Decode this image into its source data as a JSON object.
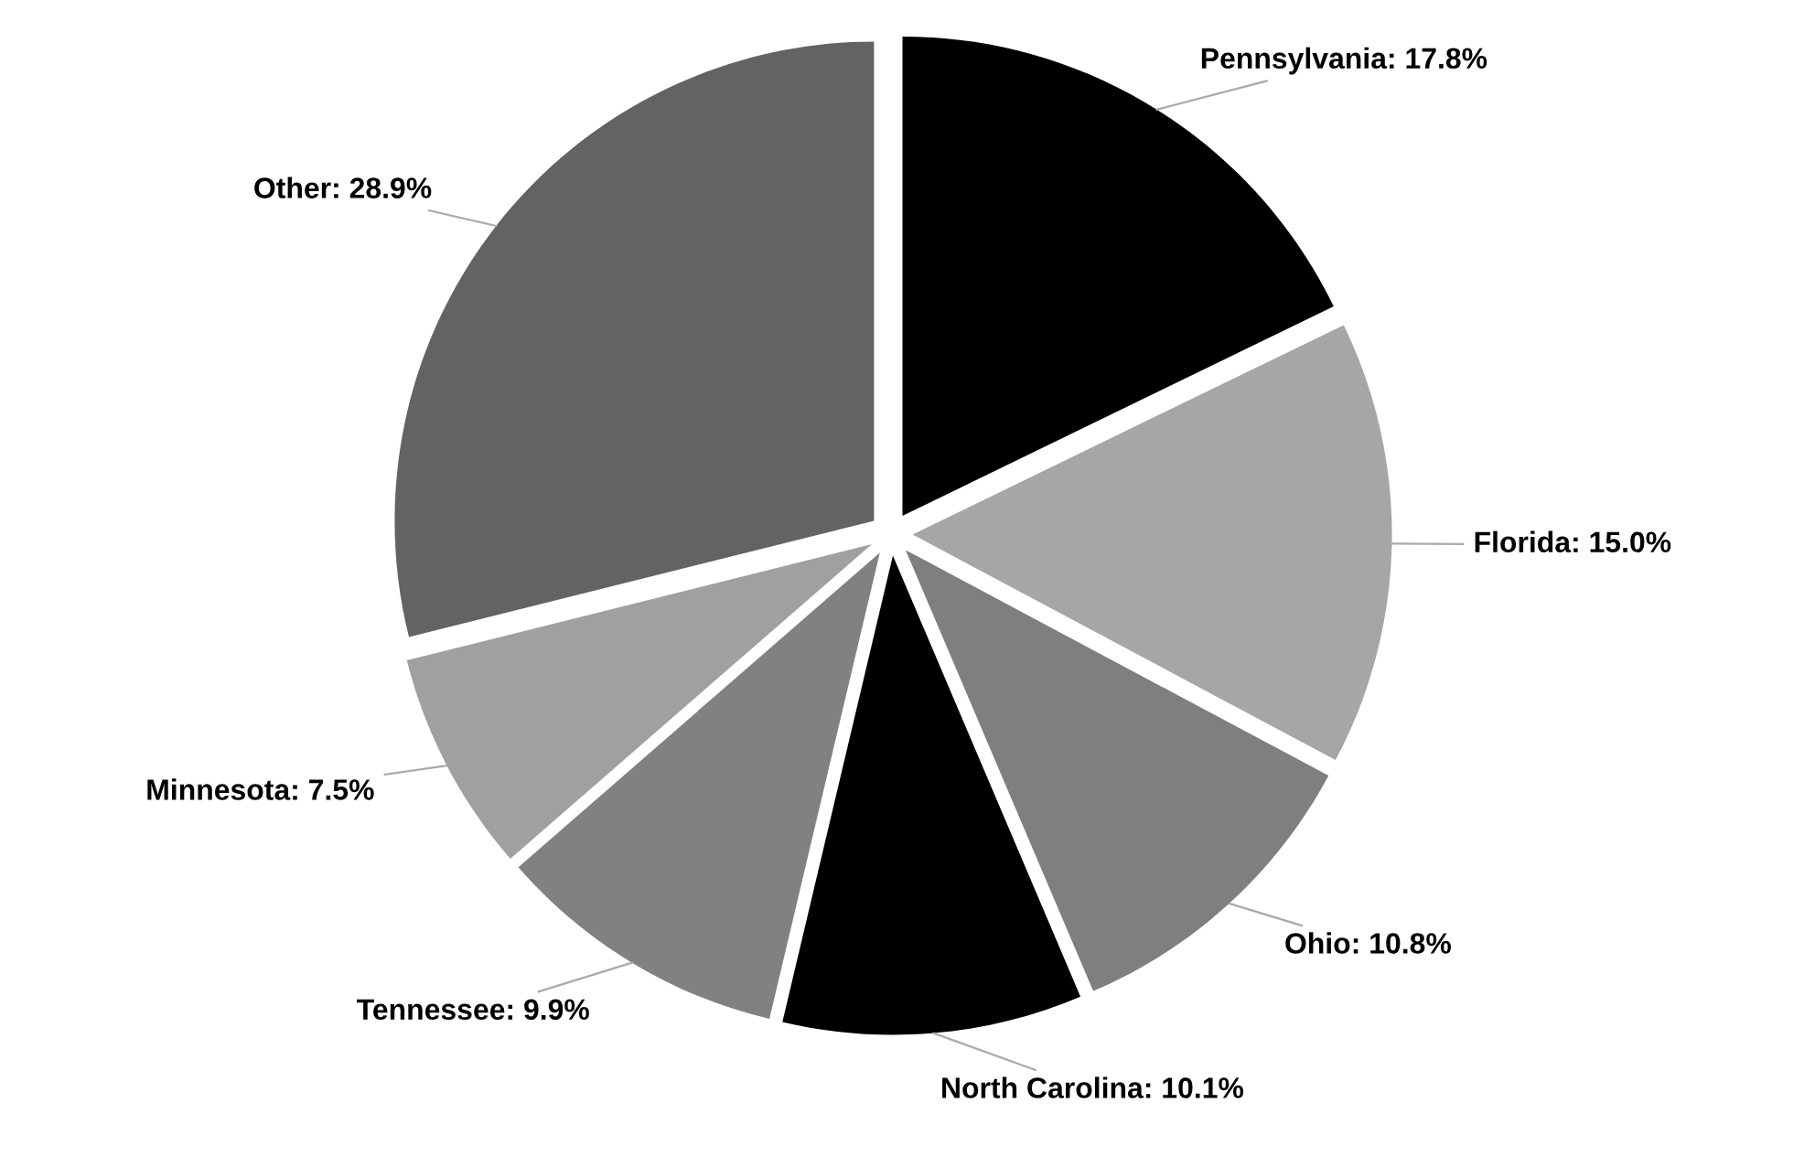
{
  "chart_data": {
    "type": "pie",
    "categories": [
      "Pennsylvania",
      "Florida",
      "Ohio",
      "North Carolina",
      "Tennessee",
      "Minnesota",
      "Other"
    ],
    "values": [
      17.8,
      15.0,
      10.8,
      10.1,
      9.9,
      7.5,
      28.9
    ],
    "colors": [
      "#000000",
      "#a6a6a6",
      "#7f7f7f",
      "#000000",
      "#818181",
      "#a0a0a0",
      "#636363"
    ],
    "value_labels": [
      "17.8%",
      "15.0%",
      "10.8%",
      "10.1%",
      "9.9%",
      "7.5%",
      "28.9%"
    ],
    "legend": false
  }
}
